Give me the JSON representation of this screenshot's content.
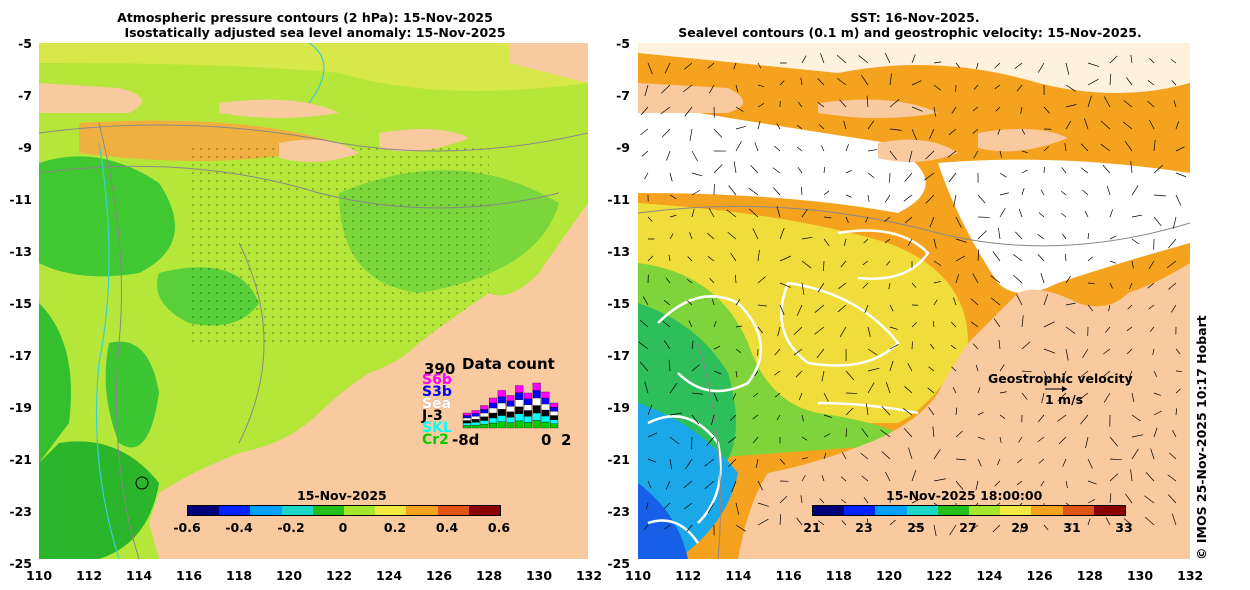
{
  "left_panel": {
    "title_line1": "Atmospheric pressure contours (2 hPa): 15-Nov-2025",
    "title_line2": "Isostatically adjusted sea level anomaly: 15-Nov-2025",
    "colorbar": {
      "title": "15-Nov-2025",
      "ticks": [
        "-0.6",
        "-0.4",
        "-0.2",
        "0",
        "0.2",
        "0.4",
        "0.6"
      ],
      "colors": [
        "#00007a",
        "#0022ff",
        "#00a0ff",
        "#19d8c8",
        "#22c11a",
        "#a6e62e",
        "#f2e640",
        "#f5a21e",
        "#e05310",
        "#8a0000"
      ]
    },
    "data_count": {
      "title": "Data count",
      "max_value": "390",
      "missions": [
        "S6b",
        "S3b",
        "Sea",
        "J-3",
        "SKL",
        "Cr2"
      ],
      "mission_colors": [
        "#ff00ff",
        "#0000ff",
        "#ffffff",
        "#000000",
        "#00ffff",
        "#00cc00"
      ],
      "x_start": "-8d",
      "x_zero": "0",
      "x_end": "2",
      "bars": [
        0.3,
        0.35,
        0.45,
        0.6,
        0.75,
        0.65,
        0.85,
        0.7,
        0.9,
        0.72,
        0.5
      ]
    }
  },
  "right_panel": {
    "title_line1": "SST: 16-Nov-2025.",
    "title_line2": "Sealevel contours (0.1 m) and geostrophic velocity: 15-Nov-2025.",
    "colorbar": {
      "title": "15-Nov-2025 18:00:00",
      "ticks": [
        "21",
        "23",
        "25",
        "27",
        "29",
        "31",
        "33"
      ],
      "colors": [
        "#00007a",
        "#0022ff",
        "#00a0ff",
        "#19d8c8",
        "#22c11a",
        "#a6e62e",
        "#f2e640",
        "#f5a21e",
        "#e05310",
        "#8a0000"
      ]
    },
    "velocity_label": "Geostrophic velocity",
    "velocity_scale": "1 m/s"
  },
  "axes": {
    "y_ticks": [
      "-5",
      "-7",
      "-9",
      "-11",
      "-13",
      "-15",
      "-17",
      "-19",
      "-21",
      "-23",
      "-25"
    ],
    "x_ticks": [
      "110",
      "112",
      "114",
      "116",
      "118",
      "120",
      "122",
      "124",
      "126",
      "128",
      "130",
      "132"
    ]
  },
  "credit": "© IMOS 25-Nov-2025 10:17 Hobart",
  "colors": {
    "land": "#f9c9a0",
    "ocean_green": "#6bd23a",
    "ocean_yellow": "#c8ea3e",
    "ocean_orange": "#f5a21e"
  }
}
